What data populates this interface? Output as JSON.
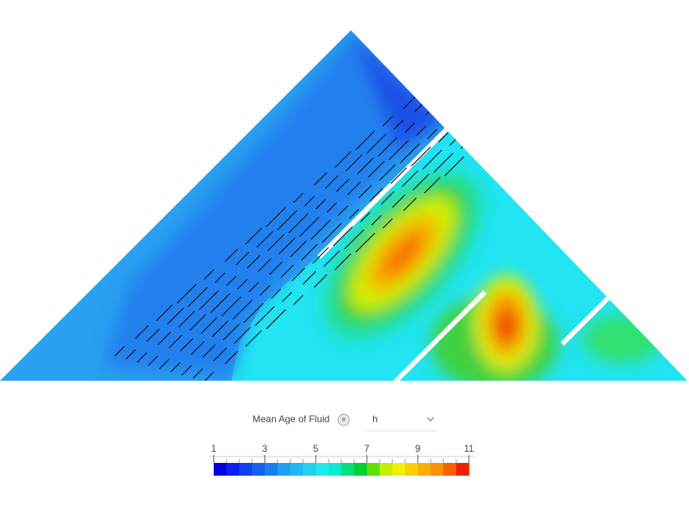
{
  "legend": {
    "title": "Mean Age of Fluid",
    "unit": "h",
    "range": [
      1,
      11
    ],
    "ticks": [
      1,
      3,
      5,
      7,
      9,
      11
    ],
    "colors": [
      "#0000e0",
      "#0a20f0",
      "#1040f0",
      "#1560f0",
      "#1a80f0",
      "#20a0f0",
      "#20b8f0",
      "#20d0f0",
      "#20e8f0",
      "#00f0d0",
      "#00e080",
      "#00d030",
      "#60e000",
      "#c0f000",
      "#f0f000",
      "#f8d000",
      "#f8b000",
      "#f89000",
      "#f86000",
      "#f02000"
    ]
  }
}
